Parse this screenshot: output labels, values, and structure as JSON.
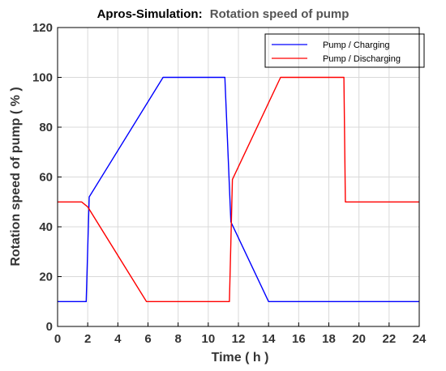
{
  "chart_data": {
    "type": "line",
    "title": "Apros-Simulation:",
    "subtitle": "Rotation speed of pump",
    "xlabel": "Time ( h )",
    "ylabel": "Rotation speed of pump ( % )",
    "xlim": [
      0,
      24
    ],
    "ylim": [
      0,
      120
    ],
    "xticks": [
      0,
      2,
      4,
      6,
      8,
      10,
      12,
      14,
      16,
      18,
      20,
      22,
      24
    ],
    "yticks": [
      0,
      20,
      40,
      60,
      80,
      100,
      120
    ],
    "grid": true,
    "legend_position": "top-right",
    "series": [
      {
        "name": "Pump / Charging",
        "color": "#0000ff",
        "points": [
          [
            0,
            10
          ],
          [
            1.9,
            10
          ],
          [
            2.1,
            52
          ],
          [
            7,
            100
          ],
          [
            11.1,
            100
          ],
          [
            11.5,
            42
          ],
          [
            14,
            10
          ],
          [
            24,
            10
          ]
        ]
      },
      {
        "name": "Pump / Discharging",
        "color": "#ff0000",
        "points": [
          [
            0,
            50
          ],
          [
            1.6,
            50
          ],
          [
            2.0,
            48
          ],
          [
            5.9,
            10
          ],
          [
            11.4,
            10
          ],
          [
            11.6,
            59
          ],
          [
            14.8,
            100
          ],
          [
            19.0,
            100
          ],
          [
            19.1,
            50
          ],
          [
            24,
            50
          ]
        ]
      }
    ]
  }
}
